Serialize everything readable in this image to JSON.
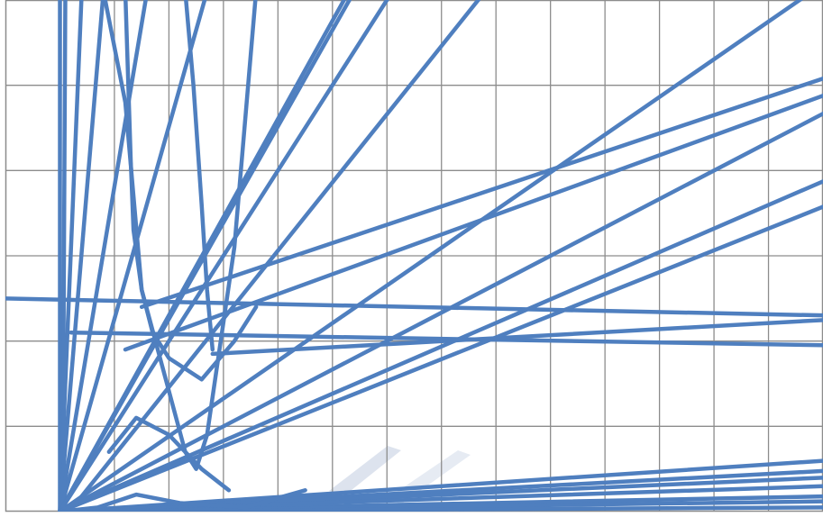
{
  "chart_data": {
    "type": "line",
    "title": "",
    "xlabel": "",
    "ylabel": "",
    "xlim": [
      -1,
      14
    ],
    "ylim": [
      0,
      6
    ],
    "grid": true,
    "grid_x_step": 1,
    "grid_y_step": 1,
    "legend": "none",
    "colors": {
      "series": "#4f7fbf",
      "grid": "#8c8c8c",
      "frame": "#8c8c8c",
      "background": "#ffffff",
      "watermark": "#dde3ee"
    },
    "series": [
      {
        "x": [
          0,
          0
        ],
        "y": [
          0,
          6.1
        ]
      },
      {
        "x": [
          0.05,
          0.1
        ],
        "y": [
          0,
          6.1
        ]
      },
      {
        "x": [
          0,
          0.4
        ],
        "y": [
          0,
          6.1
        ]
      },
      {
        "x": [
          0,
          0.8
        ],
        "y": [
          0,
          6.1
        ]
      },
      {
        "x": [
          0,
          1.6
        ],
        "y": [
          0,
          6.1
        ]
      },
      {
        "x": [
          0,
          2.7
        ],
        "y": [
          0,
          6.1
        ]
      },
      {
        "x": [
          0,
          5.3
        ],
        "y": [
          0,
          6.1
        ]
      },
      {
        "x": [
          0,
          5.4
        ],
        "y": [
          0,
          6.1
        ]
      },
      {
        "x": [
          0,
          6.1
        ],
        "y": [
          0,
          6.1
        ]
      },
      {
        "x": [
          0.3,
          7.8
        ],
        "y": [
          0.1,
          6.1
        ]
      },
      {
        "x": [
          0,
          13.8
        ],
        "y": [
          0,
          6.1
        ]
      },
      {
        "x": [
          1.2,
          14.1
        ],
        "y": [
          1.9,
          4.9
        ]
      },
      {
        "x": [
          0,
          14.1
        ],
        "y": [
          0,
          3.9
        ]
      },
      {
        "x": [
          0,
          14.1
        ],
        "y": [
          0,
          3.6
        ]
      },
      {
        "x": [
          1.5,
          14.1
        ],
        "y": [
          2.4,
          5.1
        ]
      },
      {
        "x": [
          0,
          14.1
        ],
        "y": [
          0,
          4.7
        ]
      },
      {
        "x": [
          -1.1,
          14.1
        ],
        "y": [
          2.5,
          2.3
        ]
      },
      {
        "x": [
          0.2,
          14.1
        ],
        "y": [
          2.1,
          1.95
        ]
      },
      {
        "x": [
          2.8,
          14.1
        ],
        "y": [
          1.85,
          2.25
        ]
      },
      {
        "x": [
          0,
          14.1
        ],
        "y": [
          0,
          0.6
        ]
      },
      {
        "x": [
          0,
          14.1
        ],
        "y": [
          0,
          0.48
        ]
      },
      {
        "x": [
          0,
          14.1
        ],
        "y": [
          0,
          0.4
        ]
      },
      {
        "x": [
          0,
          14.1
        ],
        "y": [
          0,
          0.3
        ]
      },
      {
        "x": [
          0,
          14.1
        ],
        "y": [
          0,
          0.18
        ]
      },
      {
        "x": [
          0,
          14.1
        ],
        "y": [
          0,
          0.12
        ]
      },
      {
        "x": [
          0,
          14.1
        ],
        "y": [
          0,
          0.05
        ]
      },
      {
        "x": [
          0.8,
          1.2,
          1.5,
          1.9,
          2.3,
          2.5,
          2.7,
          3.2,
          3.6
        ],
        "y": [
          6.1,
          4.8,
          2.6,
          1.65,
          0.7,
          0.5,
          0.9,
          3.1,
          6.1
        ]
      },
      {
        "x": [
          1.2,
          1.3,
          1.35,
          1.5,
          1.7,
          2.0,
          2.6,
          3.2,
          3.6
        ],
        "y": [
          6.1,
          4.1,
          3.3,
          2.6,
          2.1,
          1.8,
          1.55,
          2.0,
          2.4
        ]
      },
      {
        "x": [
          2.3,
          2.45,
          2.6,
          2.7,
          2.8
        ],
        "y": [
          6.1,
          5.0,
          3.6,
          2.6,
          1.9
        ]
      },
      {
        "x": [
          0.9,
          1.4,
          2.0,
          2.6,
          3.1
        ],
        "y": [
          0.7,
          1.1,
          0.9,
          0.5,
          0.25
        ]
      },
      {
        "x": [
          0,
          0.7,
          1.4,
          2.2,
          3.4,
          4.5
        ],
        "y": [
          0,
          0.05,
          0.2,
          0.1,
          0.05,
          0.25
        ]
      }
    ]
  }
}
